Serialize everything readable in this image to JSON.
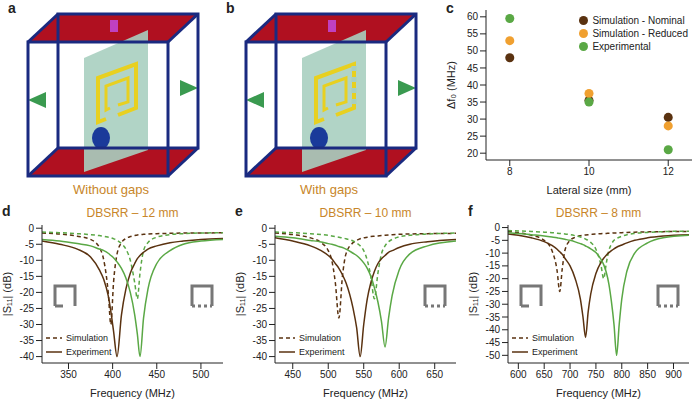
{
  "chart_data": [
    {
      "type": "diagram",
      "panel": "a",
      "caption": "Without gaps"
    },
    {
      "type": "diagram",
      "panel": "b",
      "caption": "With gaps"
    },
    {
      "type": "scatter",
      "panel": "c",
      "x_label": "Lateral size (mm)",
      "y_label": "Δf₀ (MHz)",
      "x": [
        8,
        10,
        12
      ],
      "xlim": [
        7.4,
        12.6
      ],
      "xticks": [
        8,
        10,
        12
      ],
      "ylim": [
        18,
        62
      ],
      "yticks": [
        20,
        25,
        30,
        35,
        40,
        45,
        50,
        55,
        60
      ],
      "legend": "upper right",
      "series": [
        {
          "name": "Simulation - Nominal",
          "color": "#5a3210",
          "marker": "circle",
          "values": [
            48,
            35.5,
            30.5
          ]
        },
        {
          "name": "Simulation - Reduced",
          "color": "#f0a030",
          "marker": "circle",
          "values": [
            53,
            37.5,
            28
          ]
        },
        {
          "name": "Experimental",
          "color": "#5aa845",
          "marker": "circle",
          "values": [
            59.5,
            35,
            21
          ]
        }
      ]
    },
    {
      "type": "line",
      "panel": "d",
      "title": "DBSRR – 12 mm",
      "x_label": "Frequency (MHz)",
      "y_label": "|S₁₁| (dB)",
      "xlim": [
        320,
        525
      ],
      "xticks": [
        350,
        400,
        450,
        500
      ],
      "ylim": [
        -42,
        1
      ],
      "yticks": [
        0,
        -5,
        -10,
        -15,
        -20,
        -25,
        -30,
        -35,
        -40
      ],
      "legend": "lower left",
      "x": [
        320,
        340,
        360,
        375,
        385,
        390,
        395,
        398,
        401,
        405,
        410,
        415,
        420,
        425,
        428,
        431,
        435,
        440,
        450,
        465,
        480,
        500,
        525
      ],
      "series": [
        {
          "name": "Simulation",
          "color": "#5a3210",
          "line_style": "dashed",
          "values": [
            -1.5,
            -1.8,
            -2.5,
            -3.5,
            -6,
            -10,
            -20,
            -30,
            -17,
            -8,
            -4.5,
            -3.2,
            -2.6,
            -2.3,
            -2.1,
            -2,
            -1.9,
            -1.8,
            -1.7,
            -1.6,
            -1.5,
            -1.5,
            -1.4
          ]
        },
        {
          "name": "Simulation",
          "color": "#5aa845",
          "line_style": "dashed",
          "values": [
            -1.2,
            -1.4,
            -1.7,
            -2,
            -2.3,
            -2.5,
            -2.8,
            -3,
            -3.3,
            -3.8,
            -4.8,
            -6.5,
            -10,
            -17,
            -22,
            -14,
            -7,
            -4.5,
            -2.8,
            -2,
            -1.7,
            -1.5,
            -1.4
          ]
        },
        {
          "name": "Experiment",
          "color": "#5a3210",
          "line_style": "solid",
          "values": [
            -4,
            -5,
            -6.5,
            -9,
            -13,
            -16,
            -21,
            -26,
            -32,
            -40,
            -27,
            -19,
            -14,
            -11,
            -9.5,
            -8.5,
            -7.5,
            -6.5,
            -5.5,
            -4.5,
            -4,
            -3.5,
            -3.2
          ]
        },
        {
          "name": "Experiment",
          "color": "#5aa845",
          "line_style": "solid",
          "values": [
            -3.5,
            -4,
            -4.8,
            -5.5,
            -6.5,
            -7,
            -7.8,
            -8.5,
            -9.2,
            -10.5,
            -12.5,
            -15.5,
            -20,
            -27,
            -33,
            -40,
            -28,
            -19,
            -11,
            -7,
            -5,
            -4,
            -3.5
          ]
        }
      ]
    },
    {
      "type": "line",
      "panel": "e",
      "title": "DBSRR – 10 mm",
      "x_label": "Frequency (MHz)",
      "y_label": "|S₁₁| (dB)",
      "xlim": [
        425,
        680
      ],
      "xticks": [
        450,
        500,
        550,
        600,
        650
      ],
      "ylim": [
        -42,
        1
      ],
      "yticks": [
        0,
        -5,
        -10,
        -15,
        -20,
        -25,
        -30,
        -35,
        -40
      ],
      "legend": "lower left",
      "x": [
        425,
        450,
        475,
        490,
        500,
        505,
        510,
        515,
        520,
        525,
        535,
        540,
        545,
        550,
        555,
        560,
        565,
        570,
        575,
        580,
        585,
        590,
        600,
        615,
        640,
        680
      ],
      "series": [
        {
          "name": "Simulation",
          "color": "#5a3210",
          "line_style": "dashed",
          "values": [
            -1.5,
            -2,
            -3,
            -4.5,
            -7,
            -10,
            -17,
            -28,
            -15,
            -8,
            -4.5,
            -3.8,
            -3.3,
            -3,
            -2.8,
            -2.6,
            -2.5,
            -2.4,
            -2.3,
            -2.2,
            -2.1,
            -2,
            -1.9,
            -1.8,
            -1.7,
            -1.6
          ]
        },
        {
          "name": "Simulation",
          "color": "#5aa845",
          "line_style": "dashed",
          "values": [
            -1.2,
            -1.4,
            -1.7,
            -2,
            -2.2,
            -2.4,
            -2.6,
            -2.8,
            -3,
            -3.3,
            -4,
            -4.6,
            -5.5,
            -7,
            -10,
            -15,
            -22,
            -14,
            -8,
            -5.5,
            -4.2,
            -3.5,
            -2.7,
            -2.2,
            -1.8,
            -1.5
          ]
        },
        {
          "name": "Experiment",
          "color": "#5a3210",
          "line_style": "solid",
          "values": [
            -3,
            -4,
            -5.5,
            -7,
            -8.5,
            -9.5,
            -11,
            -12.5,
            -14.5,
            -17,
            -25,
            -31,
            -40,
            -30,
            -22,
            -17,
            -13.5,
            -11,
            -9.5,
            -8.5,
            -7.5,
            -7,
            -6,
            -5,
            -4.2,
            -3.5
          ]
        },
        {
          "name": "Experiment",
          "color": "#5aa845",
          "line_style": "solid",
          "values": [
            -2.5,
            -3,
            -3.8,
            -4.3,
            -4.8,
            -5,
            -5.3,
            -5.7,
            -6,
            -6.5,
            -7.8,
            -8.5,
            -9.5,
            -10.8,
            -12.5,
            -15,
            -18.5,
            -23,
            -29,
            -37,
            -28,
            -21,
            -13,
            -8,
            -5.5,
            -4
          ]
        }
      ]
    },
    {
      "type": "line",
      "panel": "f",
      "title": "DBSRR – 8 mm",
      "x_label": "Frequency (MHz)",
      "y_label": "|S₁₁| (dB)",
      "xlim": [
        580,
        930
      ],
      "xticks": [
        600,
        650,
        700,
        750,
        800,
        850,
        900
      ],
      "ylim": [
        -53,
        1
      ],
      "yticks": [
        0,
        -5,
        -10,
        -15,
        -20,
        -25,
        -30,
        -35,
        -40,
        -45,
        -50
      ],
      "legend": "lower left",
      "x": [
        580,
        600,
        625,
        650,
        665,
        675,
        680,
        685,
        690,
        700,
        710,
        720,
        725,
        730,
        735,
        740,
        750,
        760,
        765,
        770,
        775,
        780,
        785,
        790,
        795,
        800,
        810,
        825,
        850,
        880,
        930
      ],
      "series": [
        {
          "name": "Simulation",
          "color": "#5a3210",
          "line_style": "dashed",
          "values": [
            -1.5,
            -2,
            -3,
            -5,
            -9,
            -17,
            -25,
            -16,
            -9,
            -5,
            -3.8,
            -3.2,
            -3,
            -2.9,
            -2.8,
            -2.7,
            -2.5,
            -2.4,
            -2.3,
            -2.3,
            -2.2,
            -2.2,
            -2.1,
            -2.1,
            -2,
            -2,
            -1.9,
            -1.8,
            -1.7,
            -1.6,
            -1.5
          ]
        },
        {
          "name": "Simulation",
          "color": "#5aa845",
          "line_style": "dashed",
          "values": [
            -1.2,
            -1.3,
            -1.5,
            -1.8,
            -2,
            -2.2,
            -2.3,
            -2.4,
            -2.5,
            -2.8,
            -3.2,
            -3.7,
            -4,
            -4.5,
            -5,
            -5.8,
            -8.5,
            -15,
            -20,
            -14,
            -9,
            -6.5,
            -5,
            -4.3,
            -3.8,
            -3.4,
            -2.8,
            -2.3,
            -1.9,
            -1.6,
            -1.4
          ]
        },
        {
          "name": "Experiment",
          "color": "#5a3210",
          "line_style": "solid",
          "values": [
            -2.5,
            -3,
            -4,
            -5.5,
            -7,
            -8.5,
            -9.5,
            -10.5,
            -12,
            -15,
            -20,
            -28,
            -35,
            -43,
            -33,
            -26,
            -18,
            -13.5,
            -12,
            -10.8,
            -9.8,
            -9,
            -8.3,
            -7.7,
            -7.2,
            -6.8,
            -6,
            -5,
            -4,
            -3.3,
            -2.8
          ]
        },
        {
          "name": "Experiment",
          "color": "#5aa845",
          "line_style": "solid",
          "values": [
            -2,
            -2.3,
            -2.8,
            -3.3,
            -3.7,
            -4,
            -4.2,
            -4.4,
            -4.6,
            -5,
            -5.6,
            -6.3,
            -6.7,
            -7.2,
            -7.7,
            -8.3,
            -9.8,
            -12.5,
            -14.5,
            -17.5,
            -22,
            -29,
            -38,
            -50,
            -38,
            -28,
            -17,
            -10,
            -6,
            -4,
            -3
          ]
        }
      ]
    }
  ]
}
